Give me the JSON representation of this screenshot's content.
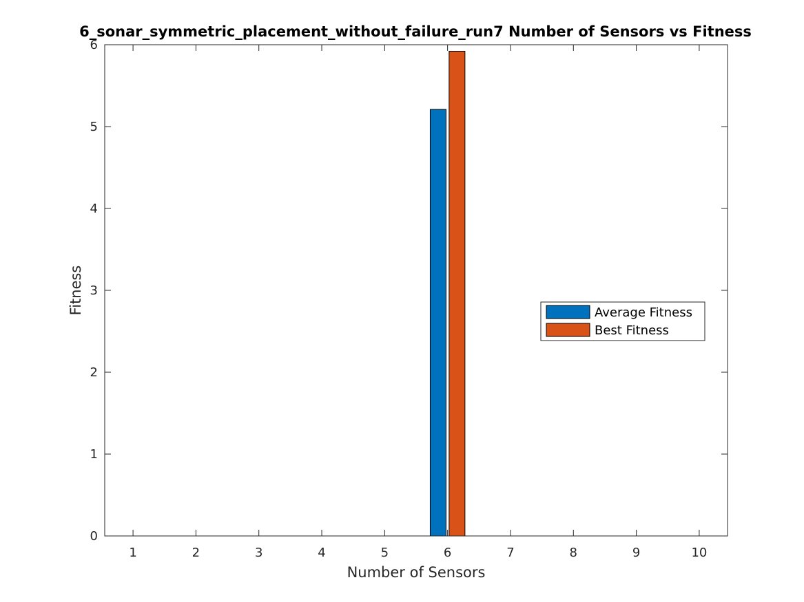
{
  "chart_data": {
    "type": "bar",
    "title": "6_sonar_symmetric_placement_without_failure_run7 Number of Sensors vs Fitness",
    "xlabel": "Number of Sensors",
    "ylabel": "Fitness",
    "categories": [
      "1",
      "2",
      "3",
      "4",
      "5",
      "6",
      "7",
      "8",
      "9",
      "10"
    ],
    "series": [
      {
        "name": "Average Fitness",
        "color": "#0072BD",
        "values": [
          0,
          0,
          0,
          0,
          0,
          5.21,
          0,
          0,
          0,
          0
        ]
      },
      {
        "name": "Best Fitness",
        "color": "#D95319",
        "values": [
          0,
          0,
          0,
          0,
          0,
          5.92,
          0,
          0,
          0,
          0
        ]
      }
    ],
    "xlim": [
      0.55,
      10.45
    ],
    "ylim": [
      0,
      6
    ],
    "yticks": [
      "0",
      "1",
      "2",
      "3",
      "4",
      "5",
      "6"
    ],
    "grid": false,
    "legend_position": "right"
  }
}
